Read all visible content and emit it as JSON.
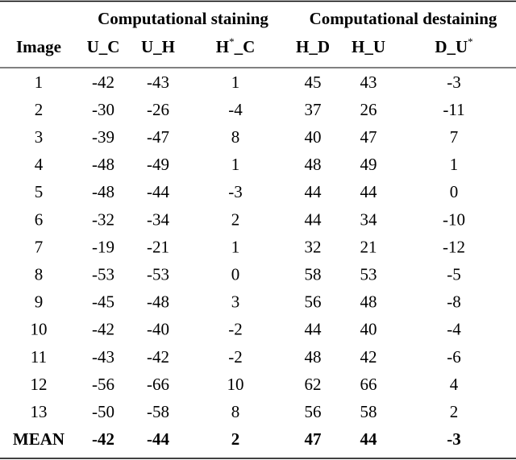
{
  "table": {
    "group_headers": [
      "Computational staining",
      "Computational destaining"
    ],
    "columns": [
      "Image",
      "U_C",
      "U_H",
      {
        "base": "H",
        "sup": "*",
        "rest": "_C"
      },
      "H_D",
      "H_U",
      {
        "base": "D_U",
        "sup": "*"
      }
    ],
    "rows": [
      [
        1,
        -42,
        -43,
        1,
        45,
        43,
        -3
      ],
      [
        2,
        -30,
        -26,
        -4,
        37,
        26,
        -11
      ],
      [
        3,
        -39,
        -47,
        8,
        40,
        47,
        7
      ],
      [
        4,
        -48,
        -49,
        1,
        48,
        49,
        1
      ],
      [
        5,
        -48,
        -44,
        -3,
        44,
        44,
        0
      ],
      [
        6,
        -32,
        -34,
        2,
        44,
        34,
        -10
      ],
      [
        7,
        -19,
        -21,
        1,
        32,
        21,
        -12
      ],
      [
        8,
        -53,
        -53,
        0,
        58,
        53,
        -5
      ],
      [
        9,
        -45,
        -48,
        3,
        56,
        48,
        -8
      ],
      [
        10,
        -42,
        -40,
        -2,
        44,
        40,
        -4
      ],
      [
        11,
        -43,
        -42,
        -2,
        48,
        42,
        -6
      ],
      [
        12,
        -56,
        -66,
        10,
        62,
        66,
        4
      ],
      [
        13,
        -50,
        -58,
        8,
        56,
        58,
        2
      ]
    ],
    "mean": {
      "label": "MEAN",
      "values": [
        -42,
        -44,
        2,
        47,
        44,
        -3
      ]
    }
  }
}
